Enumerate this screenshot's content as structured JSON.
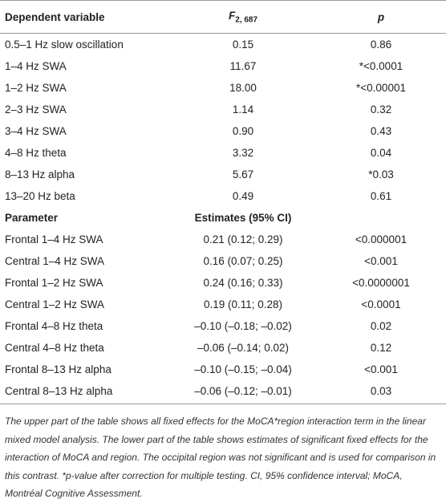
{
  "table": {
    "header": {
      "variable": "Dependent variable",
      "f_symbol": "F",
      "f_subscript": "2, 687",
      "p": "p"
    },
    "rows": [
      [
        "0.5–1 Hz slow oscillation",
        "0.15",
        "0.86"
      ],
      [
        "1–4 Hz SWA",
        "11.67",
        "*<0.0001"
      ],
      [
        "1–2 Hz SWA",
        "18.00",
        "*<0.00001"
      ],
      [
        "2–3 Hz SWA",
        "1.14",
        "0.32"
      ],
      [
        "3–4 Hz SWA",
        "0.90",
        "0.43"
      ],
      [
        "4–8 Hz theta",
        "3.32",
        "0.04"
      ],
      [
        "8–13 Hz alpha",
        "5.67",
        "*0.03"
      ],
      [
        "13–20 Hz beta",
        "0.49",
        "0.61"
      ]
    ],
    "subheader": [
      "Parameter",
      "Estimates (95% CI)"
    ],
    "parameter_rows": [
      [
        "Frontal 1–4 Hz SWA",
        "0.21 (0.12; 0.29)",
        "<0.000001"
      ],
      [
        "Central 1–4 Hz SWA",
        "0.16 (0.07; 0.25)",
        "<0.001"
      ],
      [
        "Frontal 1–2 Hz SWA",
        "0.24 (0.16; 0.33)",
        "<0.0000001"
      ],
      [
        "Central 1–2 Hz SWA",
        "0.19 (0.11; 0.28)",
        "<0.0001"
      ],
      [
        "Frontal 4–8 Hz theta",
        "–0.10 (–0.18; –0.02)",
        "0.02"
      ],
      [
        "Central 4–8 Hz theta",
        "–0.06 (–0.14; 0.02)",
        "0.12"
      ],
      [
        "Frontal 8–13 Hz alpha",
        "–0.10 (–0.15; –0.04)",
        "<0.001"
      ],
      [
        "Central 8–13 Hz alpha",
        "–0.06 (–0.12; –0.01)",
        "0.03"
      ]
    ],
    "caption": "The upper part of the table shows all fixed effects for the MoCA*region interaction term in the linear mixed model analysis. The lower part of the table shows estimates of significant fixed effects for the interaction of MoCA and region. The occipital region was not significant and is used for comparison in this contrast. *p-value after correction for multiple testing. CI, 95% confidence interval; MoCA, Montréal Cognitive Assessment."
  }
}
